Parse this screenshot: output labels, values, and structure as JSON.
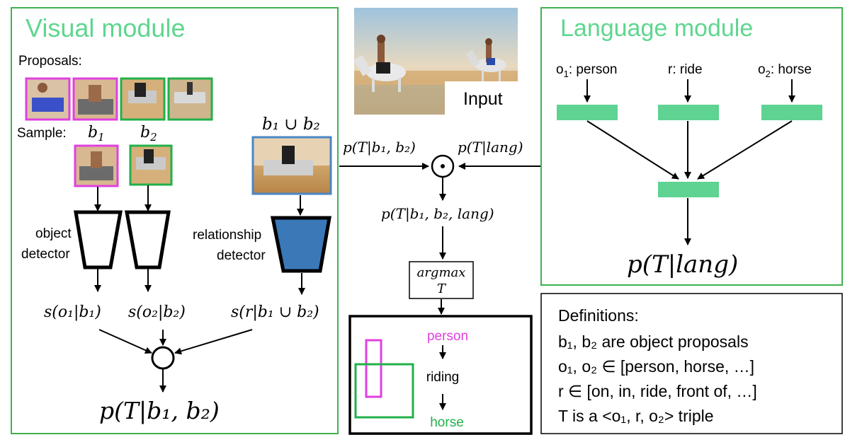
{
  "visual_module": {
    "title": "Visual module",
    "proposals_label": "Proposals:",
    "sample_label": "Sample:",
    "b1_label": "b",
    "b1_sub": "1",
    "b2_label": "b",
    "b2_sub": "2",
    "union_label": "b₁ ∪ b₂",
    "object_detector_line1": "object",
    "object_detector_line2": "detector",
    "relationship_detector_line1": "relationship",
    "relationship_detector_line2": "detector",
    "score_o1": "s(o₁|b₁)",
    "score_o2": "s(o₂|b₂)",
    "score_r": "s(r|b₁ ∪ b₂)",
    "output": "p(T|b₁, b₂)"
  },
  "center": {
    "input_label": "Input",
    "p_visual": "p(T|b₁, b₂)",
    "p_lang": "p(T|lang)",
    "combine_symbol": "⊙",
    "p_combined": "p(T|b₁, b₂, lang)",
    "argmax_line1": "argmax",
    "argmax_line2": "T",
    "result_person": "person",
    "result_riding": "riding",
    "result_horse": "horse"
  },
  "language_module": {
    "title": "Language module",
    "o1_prefix": "o",
    "o1_sub": "1",
    "o1_value": ": person",
    "r_label": "r: ride",
    "o2_prefix": "o",
    "o2_sub": "2",
    "o2_value": ": horse",
    "output": "p(T|lang)"
  },
  "definitions": {
    "title": "Definitions:",
    "line1": "b₁, b₂  are object proposals",
    "line2": "o₁, o₂ ∈ [person, horse, …]",
    "line3": "r ∈ [on, in, ride, front of, …]",
    "line4": "T is a <o₁, r, o₂> triple"
  },
  "colors": {
    "module_border": "#3fb24f",
    "module_title": "#5fd68f",
    "lang_bar": "#5ed392",
    "person_box": "#e040e0",
    "horse_box": "#22b04a",
    "union_box": "#4a86c5",
    "rel_detector_fill": "#3a78b8"
  }
}
